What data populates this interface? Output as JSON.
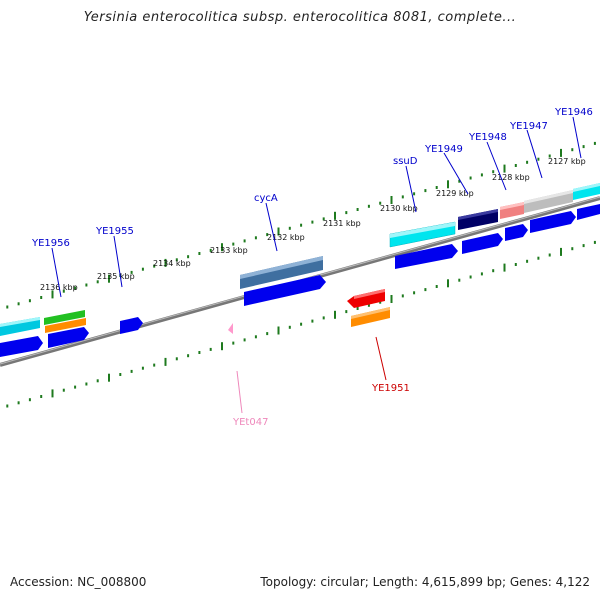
{
  "title": "Yersinia enterocolitica subsp. enterocolitica 8081, complete...",
  "footer": {
    "accession": "Accession: NC_008800",
    "stats": "Topology: circular; Length: 4,615,899 bp; Genes: 4,122"
  },
  "scale_labels": [
    "2127 kbp",
    "2128 kbp",
    "2129 kbp",
    "2130 kbp",
    "2131 kbp",
    "2132 kbp",
    "2133 kbp",
    "2134 kbp",
    "2135 kbp",
    "2136 kbp"
  ],
  "gene_labels": {
    "ye1946": "YE1946",
    "ye1947": "YE1947",
    "ye1948": "YE1948",
    "ye1949": "YE1949",
    "ssud": "ssuD",
    "cyca": "cycA",
    "ye1955": "YE1955",
    "ye1956": "YE1956",
    "ye1951": "YE1951",
    "yet047": "YEt047"
  },
  "colors": {
    "backbone": "#808080",
    "tick": "#1e7a1e",
    "label_blue": "#0000cc",
    "label_red": "#cc0000",
    "label_pink": "#ee88bb",
    "cds_blue": "#0000ee",
    "cyan": "#00e5ee",
    "steelblue": "#4a78a8",
    "navy": "#000066",
    "salmon": "#f08080",
    "grey": "#c0c0c0",
    "green": "#22c022",
    "orange": "#ff8c00",
    "red": "#ee0000",
    "pink": "#ff99cc"
  }
}
